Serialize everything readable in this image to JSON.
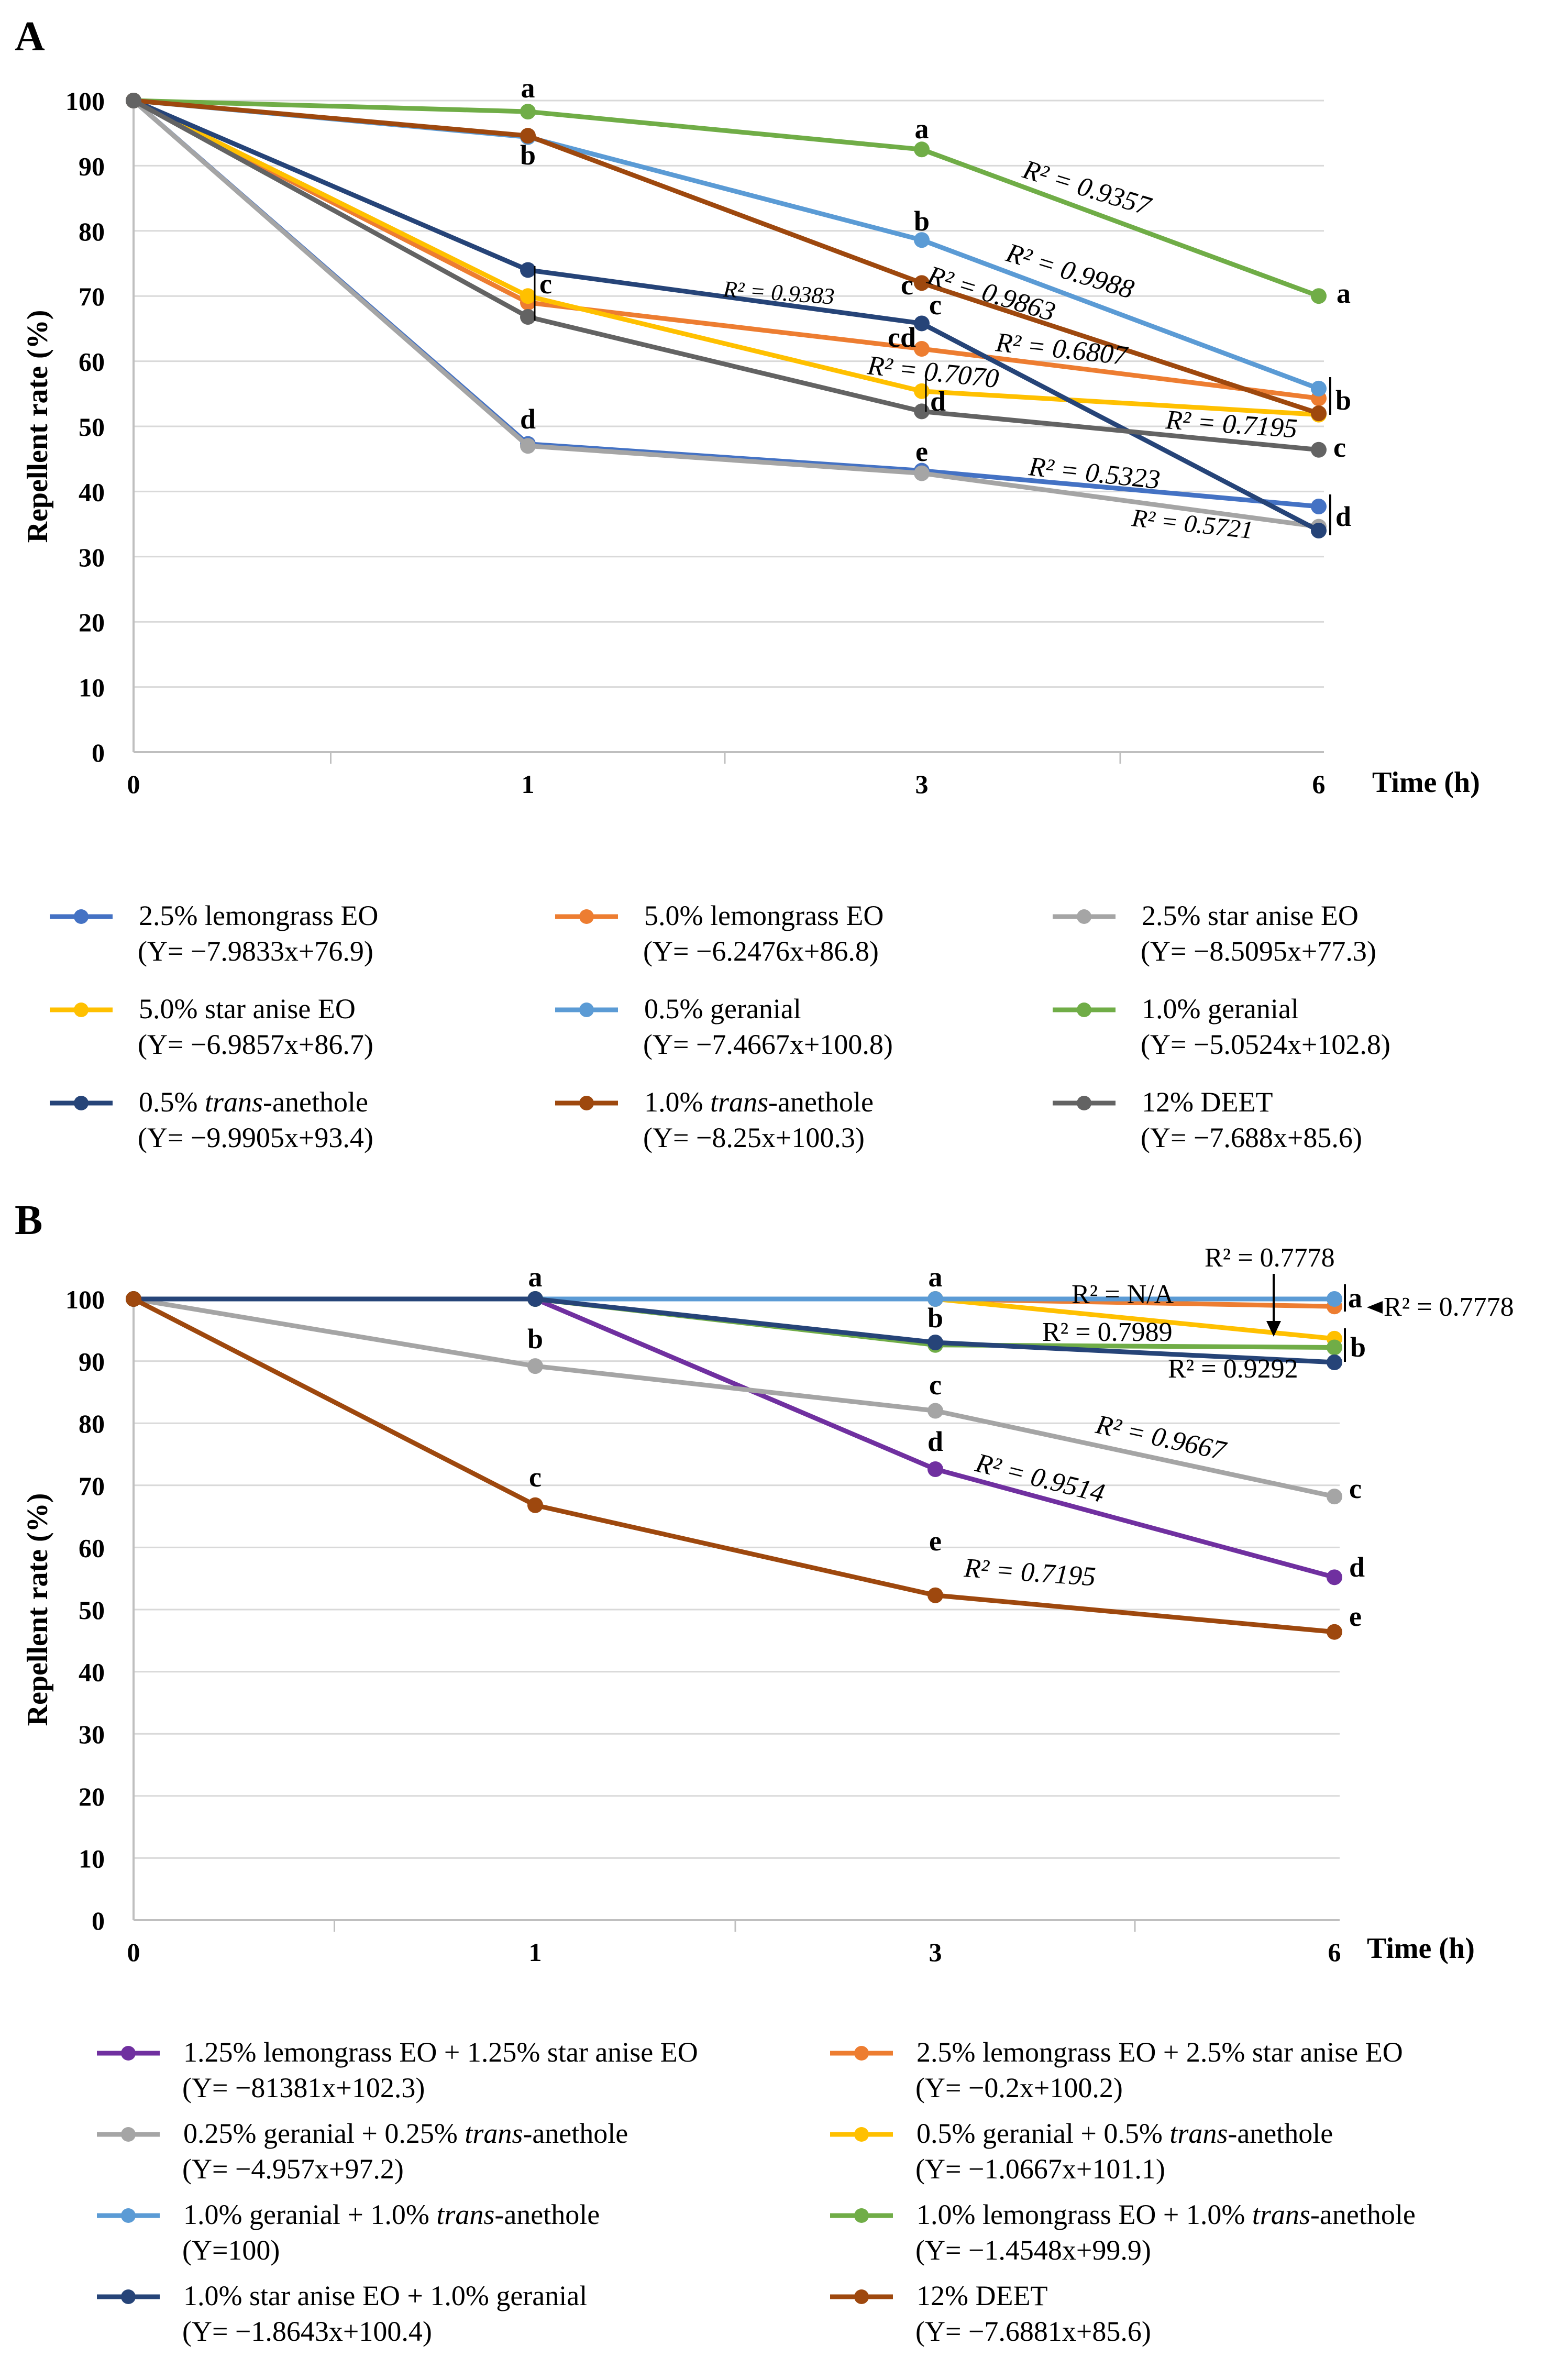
{
  "chart_data": [
    {
      "panel_label": "A",
      "type": "line",
      "x": [
        "0",
        "1",
        "3",
        "6"
      ],
      "xlabel": "Time (h)",
      "ylabel": "Repellent rate (%)",
      "ylim": [
        0,
        100
      ],
      "yticks": [
        "0",
        "10",
        "20",
        "30",
        "40",
        "50",
        "60",
        "70",
        "80",
        "90",
        "100"
      ],
      "grid": "horizontal",
      "series": [
        {
          "name": "2.5% lemongrass EO",
          "equation": "(Y= −7.9833x+76.9)",
          "color": "#4472C4",
          "values": [
            100,
            47.3,
            43.2,
            37.7
          ],
          "r2": "R² = 0.5323"
        },
        {
          "name": "5.0% lemongrass EO",
          "equation": "(Y= −6.2476x+86.8)",
          "color": "#ED7D31",
          "values": [
            100,
            69.0,
            61.9,
            54.3
          ],
          "r2": "R² = 0.6807"
        },
        {
          "name": "2.5% star anise EO",
          "equation": "(Y= −8.5095x+77.3)",
          "color": "#A5A5A5",
          "values": [
            100,
            47.0,
            42.8,
            34.6
          ],
          "r2": "R² = 0.5721"
        },
        {
          "name": "5.0% star anise EO",
          "equation": "(Y= −6.9857x+86.7)",
          "color": "#FFC000",
          "values": [
            100,
            70.0,
            55.4,
            51.8
          ],
          "r2": "R² = 0.7070"
        },
        {
          "name": "0.5% geranial",
          "equation": "(Y= −7.4667x+100.8)",
          "color": "#5B9BD5",
          "values": [
            100,
            94.4,
            78.6,
            55.8
          ],
          "r2": "R² = 0.9988"
        },
        {
          "name": "1.0% geranial",
          "equation": "(Y= −5.0524x+102.8)",
          "color": "#70AD47",
          "values": [
            100,
            98.3,
            92.5,
            70.0
          ],
          "r2": "R² = 0.9357"
        },
        {
          "name": "0.5% trans-anethole",
          "name_parts": [
            "0.5% ",
            "trans",
            "-anethole"
          ],
          "equation": "(Y= −9.9905x+93.4)",
          "color": "#264478",
          "values": [
            100,
            74.0,
            65.8,
            34.0
          ],
          "r2": "R² = 0.9383"
        },
        {
          "name": "1.0% trans-anethole",
          "name_parts": [
            "1.0% ",
            "trans",
            "-anethole"
          ],
          "equation": "(Y= −8.25x+100.3)",
          "color": "#9E480E",
          "values": [
            100,
            94.6,
            72.0,
            52.0
          ],
          "r2": "R² = 0.9863"
        },
        {
          "name": "12% DEET",
          "equation": "(Y= −7.688x+85.6)",
          "color": "#636363",
          "values": [
            100,
            66.8,
            52.3,
            46.4
          ],
          "r2": "R² = 0.7195"
        }
      ],
      "annotations": {
        "letters": [
          "a",
          "b",
          "c",
          "d",
          "a",
          "b",
          "c",
          "c",
          "cd",
          "d",
          "e",
          "a",
          "b",
          "c",
          "d"
        ]
      }
    },
    {
      "panel_label": "B",
      "type": "line",
      "x": [
        "0",
        "1",
        "3",
        "6"
      ],
      "xlabel": "Time (h)",
      "ylabel": "Repellent rate (%)",
      "ylim": [
        0,
        100
      ],
      "yticks": [
        "0",
        "10",
        "20",
        "30",
        "40",
        "50",
        "60",
        "70",
        "80",
        "90",
        "100"
      ],
      "grid": "horizontal",
      "series": [
        {
          "name": "1.25% lemongrass EO + 1.25% star anise EO",
          "equation": "(Y= −81381x+102.3)",
          "color": "#7030A0",
          "values": [
            100,
            100,
            72.6,
            55.2
          ],
          "r2": "R² = 0.9514"
        },
        {
          "name": "2.5% lemongrass EO + 2.5% star anise EO",
          "equation": "(Y= −0.2x+100.2)",
          "color": "#ED7D31",
          "values": [
            100,
            100,
            100,
            98.8
          ],
          "r2": "R² = 0.7778"
        },
        {
          "name": "0.25% geranial + 0.25% trans-anethole",
          "name_parts": [
            "0.25% geranial + 0.25% ",
            "trans",
            "-anethole"
          ],
          "equation": "(Y= −4.957x+97.2)",
          "color": "#A5A5A5",
          "values": [
            100,
            89.2,
            82.0,
            68.2
          ],
          "r2": "R² = 0.9667"
        },
        {
          "name": "0.5% geranial + 0.5% trans-anethole",
          "name_parts": [
            "0.5% geranial + 0.5% ",
            "trans",
            "-anethole"
          ],
          "equation": "(Y= −1.0667x+101.1)",
          "color": "#FFC000",
          "values": [
            100,
            100,
            100,
            93.6
          ],
          "r2": "R² = 0.7778"
        },
        {
          "name": "1.0% geranial + 1.0% trans-anethole",
          "name_parts": [
            "1.0% geranial + 1.0% ",
            "trans",
            "-anethole"
          ],
          "equation": "(Y=100)",
          "color": "#5B9BD5",
          "values": [
            100,
            100,
            100,
            100
          ],
          "r2": "R² = N/A"
        },
        {
          "name": "1.0% lemongrass EO + 1.0% trans-anethole",
          "name_parts": [
            "1.0% lemongrass EO + 1.0% ",
            "trans",
            "-anethole"
          ],
          "equation": "(Y= −1.4548x+99.9)",
          "color": "#70AD47",
          "values": [
            100,
            100,
            92.6,
            92.2
          ],
          "r2": "R² = 0.7989"
        },
        {
          "name": "1.0% star anise EO + 1.0% geranial",
          "equation": "(Y= −1.8643x+100.4)",
          "color": "#264478",
          "values": [
            100,
            100,
            93.0,
            89.8
          ],
          "r2": "R² = 0.9292"
        },
        {
          "name": "12% DEET",
          "equation": "(Y= −7.6881x+85.6)",
          "color": "#9E480E",
          "values": [
            100,
            66.8,
            52.3,
            46.4
          ],
          "r2": "R² = 0.7195"
        }
      ],
      "annotations": {
        "letters": [
          "a",
          "b",
          "c",
          "a",
          "b",
          "c",
          "d",
          "e",
          "a",
          "b",
          "c",
          "d",
          "e"
        ]
      }
    }
  ]
}
